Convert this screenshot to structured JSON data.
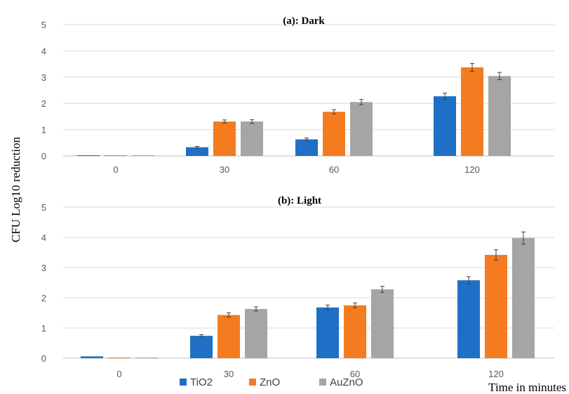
{
  "chart_data": {
    "type": "bar",
    "ylabel": "CFU Log10 reduction",
    "xlabel": "Time in minutes",
    "categories": [
      "0",
      "30",
      "60",
      "120"
    ],
    "ylim": [
      0,
      5
    ],
    "yticks": [
      "0",
      "1",
      "2",
      "3",
      "4",
      "5"
    ],
    "grid": true,
    "legend_position": "bottom",
    "series_info": [
      {
        "name": "TiO2",
        "color": "#1F6FC6"
      },
      {
        "name": "ZnO",
        "color": "#F47B20"
      },
      {
        "name": "AuZnO",
        "color": "#A5A5A5"
      }
    ],
    "panels": [
      {
        "title": "(a): Dark",
        "series": [
          {
            "name": "TiO2",
            "values": [
              0.0,
              0.33,
              0.63,
              2.27
            ],
            "errors": [
              0.0,
              0.03,
              0.05,
              0.12
            ]
          },
          {
            "name": "ZnO",
            "values": [
              0.0,
              1.31,
              1.68,
              3.37
            ],
            "errors": [
              0.0,
              0.06,
              0.08,
              0.15
            ]
          },
          {
            "name": "AuZnO",
            "values": [
              0.0,
              1.31,
              2.05,
              3.04
            ],
            "errors": [
              0.0,
              0.07,
              0.1,
              0.14
            ]
          }
        ]
      },
      {
        "title": "(b): Light",
        "series": [
          {
            "name": "TiO2",
            "values": [
              0.06,
              0.74,
              1.68,
              2.58
            ],
            "errors": [
              0.0,
              0.04,
              0.08,
              0.12
            ]
          },
          {
            "name": "ZnO",
            "values": [
              0.0,
              1.43,
              1.75,
              3.42
            ],
            "errors": [
              0.0,
              0.07,
              0.08,
              0.17
            ]
          },
          {
            "name": "AuZnO",
            "values": [
              0.0,
              1.63,
              2.28,
              3.98
            ],
            "errors": [
              0.0,
              0.07,
              0.1,
              0.2
            ]
          }
        ]
      }
    ]
  }
}
